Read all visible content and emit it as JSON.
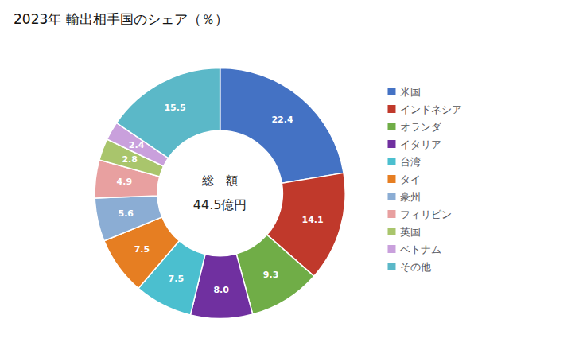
{
  "chart_data": {
    "type": "pie",
    "title": "2023年 輸出相手国のシェア（％）",
    "annotations": [
      "総　額",
      "44.5億円"
    ],
    "categories": [
      "米国",
      "インドネシア",
      "オランダ",
      "イタリア",
      "台湾",
      "タイ",
      "豪州",
      "フィリピン",
      "英国",
      "ベトナム",
      "その他"
    ],
    "values": [
      22.4,
      14.1,
      9.3,
      8.0,
      7.5,
      7.5,
      5.6,
      4.9,
      2.8,
      2.4,
      15.5
    ],
    "value_labels": [
      "22.4",
      "14.1",
      "9.3",
      "8.0",
      "7.5",
      "7.5",
      "5.6",
      "4.9",
      "2.8",
      "2.4",
      "15.5"
    ],
    "colors": [
      "#4472C4",
      "#C0392B",
      "#70AD47",
      "#7030A0",
      "#4BBFCF",
      "#E67E22",
      "#8BADD4",
      "#E8A0A0",
      "#A9C56C",
      "#C9A0DC",
      "#5BB8C8"
    ],
    "data_labels": true,
    "legend": "right"
  }
}
